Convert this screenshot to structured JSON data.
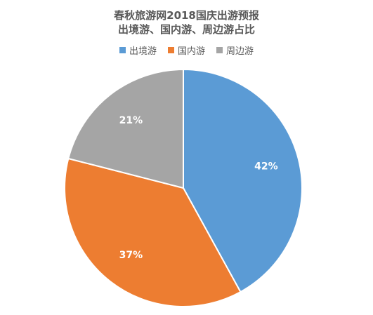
{
  "chart_data": {
    "type": "pie",
    "title_lines": [
      "春秋旅游网2018国庆出游预报",
      "出境游、国内游、周边游占比"
    ],
    "categories": [
      "出境游",
      "国内游",
      "周边游"
    ],
    "values": [
      42,
      37,
      21
    ],
    "data_labels": [
      "42%",
      "37%",
      "21%"
    ],
    "colors": [
      "#5B9BD5",
      "#ED7D31",
      "#A5A5A5"
    ],
    "legend_position": "top",
    "start_angle": "12 o'clock, clockwise"
  }
}
